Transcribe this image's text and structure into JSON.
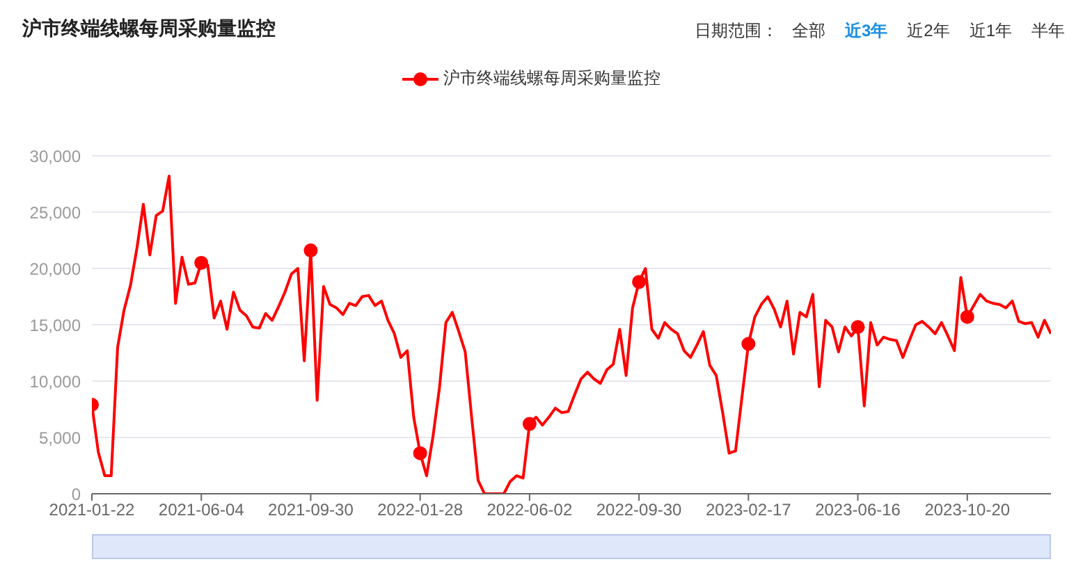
{
  "chart_data": {
    "type": "line",
    "title": "沪市终端线螺每周采购量监控",
    "annotations": [
      "日期范围：",
      "全部",
      "近3年",
      "近2年",
      "近1年",
      "半年"
    ],
    "categories": [
      "2021-01-22",
      null,
      null,
      null,
      null,
      null,
      null,
      null,
      null,
      null,
      null,
      null,
      null,
      null,
      null,
      null,
      null,
      "2021-06-04",
      null,
      null,
      null,
      null,
      null,
      null,
      null,
      null,
      null,
      null,
      null,
      null,
      null,
      null,
      null,
      null,
      "2021-09-30",
      null,
      null,
      null,
      null,
      null,
      null,
      null,
      null,
      null,
      null,
      null,
      null,
      null,
      null,
      null,
      null,
      "2022-01-28",
      null,
      null,
      null,
      null,
      null,
      null,
      null,
      null,
      null,
      null,
      null,
      null,
      null,
      null,
      null,
      null,
      "2022-06-02",
      null,
      null,
      null,
      null,
      null,
      null,
      null,
      null,
      null,
      null,
      null,
      null,
      null,
      null,
      null,
      null,
      "2022-09-30",
      null,
      null,
      null,
      null,
      null,
      null,
      null,
      null,
      null,
      null,
      null,
      null,
      null,
      null,
      null,
      null,
      "2023-02-17",
      null,
      null,
      null,
      null,
      null,
      null,
      null,
      null,
      null,
      null,
      null,
      null,
      null,
      null,
      null,
      null,
      "2023-06-16",
      null,
      null,
      null,
      null,
      null,
      null,
      null,
      null,
      null,
      null,
      null,
      null,
      null,
      null,
      null,
      null,
      "2023-10-20",
      null,
      null,
      null,
      null,
      null,
      null,
      null,
      null,
      null,
      null,
      null,
      null,
      null
    ],
    "series": [
      {
        "name": "沪市终端线螺每周采购量监控",
        "color": "#ff0000",
        "values": [
          7900,
          3700,
          1600,
          1600,
          13000,
          16300,
          18500,
          21800,
          25700,
          21200,
          24700,
          25100,
          28200,
          16900,
          21000,
          18600,
          18700,
          20500,
          20300,
          15600,
          17100,
          14600,
          17900,
          16300,
          15800,
          14800,
          14700,
          16000,
          15400,
          16600,
          17900,
          19500,
          20000,
          11800,
          21600,
          8300,
          18400,
          16800,
          16500,
          15900,
          16900,
          16700,
          17500,
          17600,
          16700,
          17100,
          15400,
          14200,
          12100,
          12700,
          6800,
          3600,
          1600,
          5100,
          9400,
          15200,
          16100,
          14400,
          12600,
          6800,
          1200,
          0,
          0,
          0,
          0,
          1100,
          1600,
          1400,
          6200,
          6800,
          6100,
          6800,
          7600,
          7200,
          7300,
          8800,
          10200,
          10800,
          10200,
          9800,
          11000,
          11500,
          14600,
          10500,
          16500,
          18800,
          20000,
          14600,
          13800,
          15200,
          14600,
          14200,
          12700,
          12100,
          13200,
          14400,
          11400,
          10500,
          7200,
          3600,
          3800,
          8600,
          13300,
          15700,
          16800,
          17500,
          16400,
          14800,
          17100,
          12400,
          16100,
          15700,
          17700,
          9500,
          15400,
          14800,
          12600,
          14800,
          14000,
          14800,
          7800,
          15200,
          13200,
          13900,
          13700,
          13600,
          12100,
          13600,
          15000,
          15300,
          14800,
          14200,
          15200,
          14000,
          12700,
          19200,
          15700,
          16700,
          17700,
          17100,
          16900,
          16800,
          16500,
          17100,
          15300,
          15100,
          15200,
          13900,
          15400,
          14200
        ]
      }
    ],
    "ylim": [
      0,
      30000
    ],
    "yticks": [
      0,
      {
        "value": 5000,
        "label": "5,000"
      },
      {
        "value": 10000,
        "label": "10,000"
      },
      {
        "value": 15000,
        "label": "15,000"
      },
      {
        "value": 20000,
        "label": "20,000"
      },
      {
        "value": 25000,
        "label": "25,000"
      },
      {
        "value": 30000,
        "label": "30,000"
      }
    ],
    "grid": "y",
    "legend": "top",
    "line_style": "solid"
  }
}
